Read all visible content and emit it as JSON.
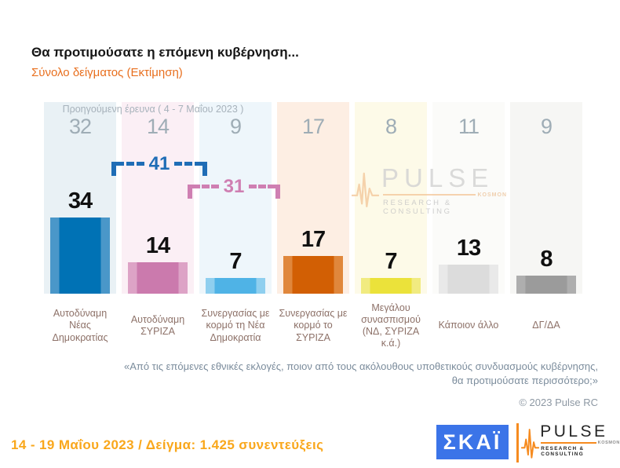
{
  "header": {
    "title": "Θα προτιμούσατε η επόμενη κυβέρνηση...",
    "subtitle": "Σύνολο δείγματος  (Εκτίμηση)"
  },
  "chart": {
    "previous_note": "Προηγούμενη έρευνα ( 4 - 7 Μαΐου  2023 )"
  },
  "chart_data": {
    "type": "bar",
    "unit": "%",
    "categories": [
      "Αυτοδύναμη Νέας Δημοκρατίας",
      "Αυτοδύναμη ΣΥΡΙΖΑ",
      "Συνεργασίας με κορμό τη Νέα Δημοκρατία",
      "Συνεργασίας με κορμό το ΣΥΡΙΖΑ",
      "Μεγάλου συνασπισμού (ΝΔ, ΣΥΡΙΖΑ κ.ά.)",
      "Κάποιον άλλο",
      "ΔΓ/ΔΑ"
    ],
    "series": [
      {
        "name": "Εκτίμηση (14 - 19 Μαΐου 2023)",
        "values": [
          34,
          14,
          7,
          17,
          7,
          13,
          8
        ]
      },
      {
        "name": "Προηγούμενη έρευνα (4 - 7 Μαΐου 2023)",
        "values": [
          32,
          14,
          9,
          17,
          8,
          11,
          9
        ]
      }
    ],
    "bar_colors": [
      "#0072b5",
      "#cb7aad",
      "#4fb3e6",
      "#d25f04",
      "#ebe23a",
      "#dcdcdc",
      "#9b9b9b"
    ],
    "bar_edge_colors": [
      "#4a97c9",
      "#dda3c6",
      "#8fcfef",
      "#e0873c",
      "#f1eb80",
      "#e9e9e9",
      "#aeaeae"
    ],
    "column_bg": [
      "#e9f1f5",
      "#fbeff5",
      "#eef6fb",
      "#fdeee3",
      "#fdfae8",
      "#fbfbf9",
      "#f6f6f4"
    ],
    "ylim": [
      0,
      40
    ],
    "grid": false,
    "legend_position": "none"
  },
  "annotations": [
    {
      "label": "41",
      "color": "#1f6db6"
    },
    {
      "label": "31",
      "color": "#cf7fb2"
    }
  ],
  "watermark": {
    "brand": "PULSE",
    "small_text": "KOSMON",
    "tagline": "RESEARCH & CONSULTING"
  },
  "footnote": {
    "question": "«Από τις επόμενες εθνικές εκλογές, ποιον από τους ακόλουθους υποθετικούς συνδυασμούς κυβέρνησης, θα προτιμούσατε περισσότερο;»",
    "copyright": "© 2023 Pulse RC"
  },
  "footer": {
    "fieldwork": "14 - 19  Μαΐου  2023  /  Δείγμα:  1.425 συνεντεύξεις"
  },
  "logos": {
    "skai": {
      "text": "ΣΚΑΪ",
      "bg_color": "#3b74e8"
    },
    "pulse": {
      "brand": "PULSE",
      "small_text": "KOSMON",
      "tagline": "RESEARCH & CONSULTING",
      "accent_color": "#f68b1f"
    }
  }
}
